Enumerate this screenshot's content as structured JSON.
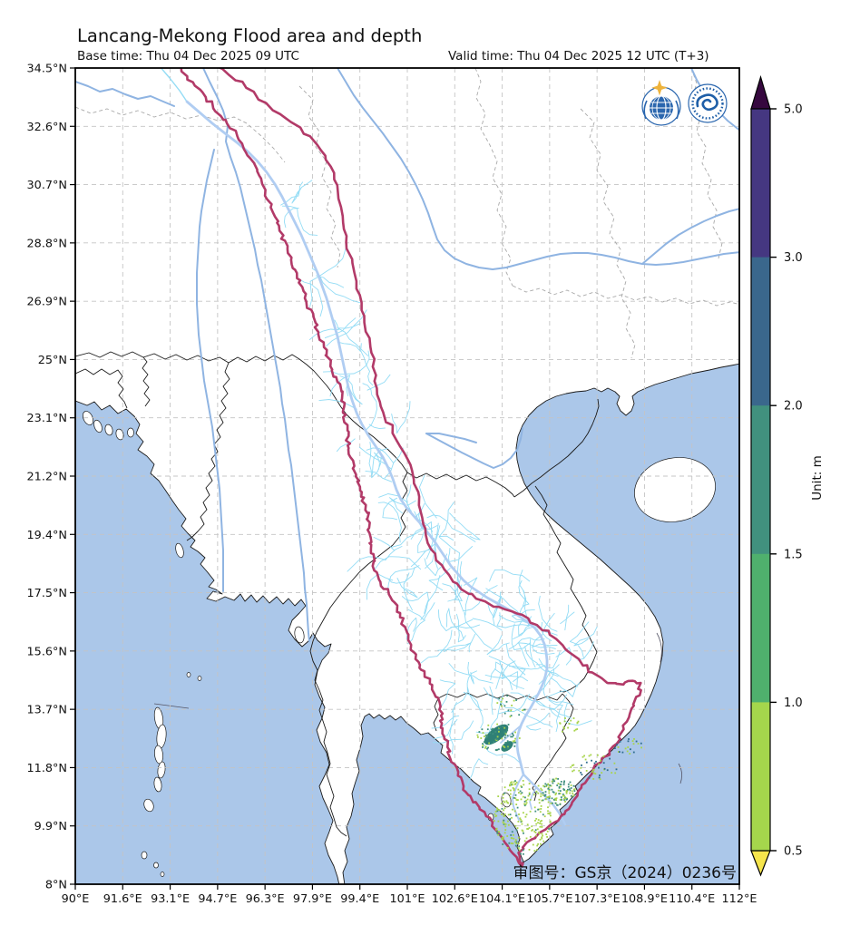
{
  "header": {
    "title": "Lancang-Mekong Flood area and depth",
    "base_time": "Base time: Thu 04 Dec 2025 09 UTC",
    "valid_time": "Valid time: Thu 04 Dec 2025 12 UTC (T+3)"
  },
  "axes": {
    "lon_ticks": [
      "90°E",
      "91.6°E",
      "93.1°E",
      "94.7°E",
      "96.3°E",
      "97.9°E",
      "99.4°E",
      "101°E",
      "102.6°E",
      "104.1°E",
      "105.7°E",
      "107.3°E",
      "108.9°E",
      "110.4°E",
      "112°E"
    ],
    "lat_ticks": [
      "34.5°N",
      "32.6°N",
      "30.7°N",
      "28.8°N",
      "26.9°N",
      "25°N",
      "23.1°N",
      "21.2°N",
      "19.4°N",
      "17.5°N",
      "15.6°N",
      "13.7°N",
      "11.8°N",
      "9.9°N",
      "8°N"
    ]
  },
  "colorbar": {
    "unit_label": "Unit: m",
    "tick_labels": [
      "5.0",
      "3.0",
      "2.0",
      "1.5",
      "1.0",
      "0.5"
    ],
    "segment_colors_top_to_bottom": [
      "#453781",
      "#3a678c",
      "#41917e",
      "#4fb06d",
      "#a5d64c"
    ],
    "arrow_top_color": "#36083f",
    "arrow_bottom_color": "#f6e54c"
  },
  "map": {
    "watermark": "审图号：GS京（2024）0236号",
    "sea_color": "#abc7e9",
    "land_color": "#ffffff",
    "coast_color": "#1a1a1a",
    "grid_color": "#c4c4c4",
    "basin_outline_color": "#b23a68",
    "main_river_color": "#b0cdf2",
    "major_river_color": "#8fb4e2",
    "tributary_color": "#93dcf5",
    "flood_lake_color": "#2f8076",
    "flood_speckle_colors": [
      "#a8d44b",
      "#3f8f7d",
      "#2f6d8e"
    ],
    "logos": [
      {
        "name": "wmo-logo"
      },
      {
        "name": "cma-logo"
      }
    ]
  }
}
